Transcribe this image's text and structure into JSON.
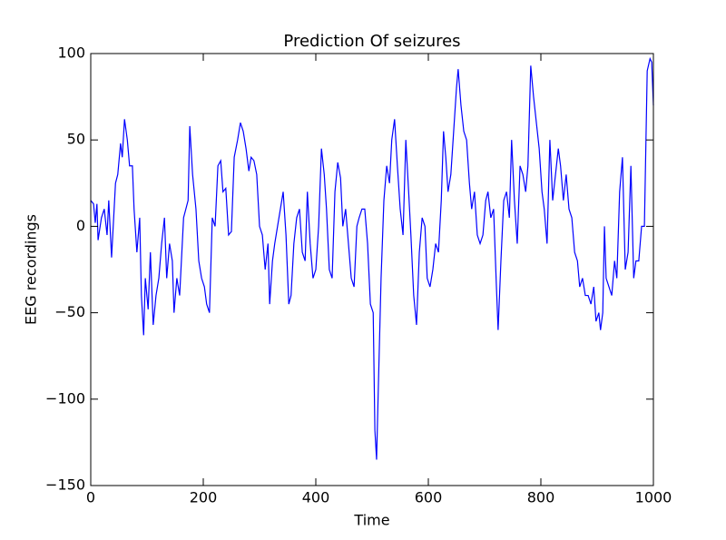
{
  "chart_data": {
    "type": "line",
    "title": "Prediction Of seizures",
    "x_label": "Time",
    "y_label": "EEG recordings",
    "x": [
      0,
      5,
      8,
      11,
      13,
      19,
      24,
      29,
      32,
      37,
      44,
      48,
      53,
      56,
      60,
      65,
      69,
      74,
      77,
      82,
      87,
      90,
      94,
      97,
      102,
      106,
      111,
      116,
      121,
      126,
      131,
      135,
      140,
      145,
      148,
      153,
      158,
      165,
      169,
      173,
      176,
      181,
      187,
      192,
      197,
      202,
      206,
      211,
      216,
      221,
      226,
      231,
      235,
      240,
      245,
      250,
      255,
      261,
      266,
      271,
      276,
      281,
      285,
      290,
      295,
      300,
      305,
      310,
      315,
      318,
      323,
      327,
      332,
      337,
      342,
      347,
      352,
      356,
      361,
      366,
      371,
      376,
      381,
      385,
      390,
      395,
      400,
      405,
      410,
      415,
      419,
      424,
      429,
      434,
      439,
      444,
      448,
      453,
      458,
      463,
      468,
      473,
      477,
      482,
      487,
      492,
      497,
      502,
      505,
      508,
      511,
      516,
      521,
      526,
      531,
      535,
      540,
      545,
      550,
      555,
      560,
      565,
      569,
      574,
      579,
      584,
      589,
      594,
      598,
      603,
      608,
      613,
      618,
      623,
      627,
      631,
      635,
      640,
      645,
      650,
      653,
      658,
      663,
      668,
      673,
      677,
      682,
      687,
      692,
      697,
      702,
      706,
      711,
      716,
      721,
      724,
      729,
      734,
      739,
      744,
      748,
      753,
      758,
      763,
      768,
      773,
      777,
      782,
      787,
      792,
      797,
      802,
      806,
      811,
      816,
      821,
      826,
      831,
      835,
      840,
      845,
      850,
      855,
      860,
      865,
      869,
      874,
      879,
      884,
      889,
      894,
      898,
      903,
      906,
      910,
      913,
      916,
      921,
      926,
      931,
      935,
      940,
      945,
      950,
      955,
      960,
      965,
      969,
      974,
      979,
      984,
      989,
      994,
      997,
      1000
    ],
    "series": [
      {
        "name": "EEG",
        "color": "#0000ff",
        "values": [
          15,
          13,
          2,
          13,
          -8,
          5,
          10,
          -5,
          15,
          -18,
          25,
          30,
          48,
          40,
          62,
          50,
          35,
          35,
          10,
          -15,
          5,
          -40,
          -63,
          -30,
          -48,
          -15,
          -57,
          -40,
          -30,
          -10,
          5,
          -30,
          -10,
          -20,
          -50,
          -30,
          -40,
          5,
          10,
          15,
          58,
          30,
          10,
          -20,
          -30,
          -35,
          -45,
          -50,
          5,
          0,
          35,
          38,
          20,
          22,
          -5,
          -3,
          40,
          50,
          60,
          55,
          45,
          32,
          40,
          38,
          30,
          0,
          -5,
          -25,
          -10,
          -45,
          -20,
          -10,
          0,
          10,
          20,
          -5,
          -45,
          -40,
          -10,
          5,
          10,
          -15,
          -20,
          20,
          -10,
          -30,
          -25,
          0,
          45,
          30,
          10,
          -25,
          -30,
          20,
          37,
          28,
          0,
          10,
          -10,
          -30,
          -35,
          0,
          5,
          10,
          10,
          -10,
          -45,
          -50,
          -118,
          -135,
          -95,
          -30,
          15,
          35,
          25,
          50,
          62,
          35,
          10,
          -5,
          50,
          20,
          -5,
          -40,
          -57,
          -15,
          5,
          0,
          -30,
          -35,
          -25,
          -10,
          -15,
          15,
          55,
          40,
          20,
          30,
          55,
          80,
          91,
          70,
          55,
          50,
          25,
          10,
          20,
          -5,
          -10,
          -5,
          15,
          20,
          5,
          10,
          -35,
          -60,
          -20,
          15,
          20,
          5,
          50,
          15,
          -10,
          35,
          30,
          20,
          35,
          93,
          75,
          60,
          45,
          20,
          10,
          -10,
          50,
          15,
          30,
          45,
          35,
          15,
          30,
          10,
          5,
          -15,
          -20,
          -35,
          -30,
          -40,
          -40,
          -45,
          -35,
          -55,
          -50,
          -60,
          -50,
          0,
          -30,
          -35,
          -40,
          -20,
          -30,
          20,
          40,
          -25,
          -15,
          35,
          -30,
          -20,
          -20,
          0,
          0,
          90,
          97,
          95,
          70
        ]
      }
    ],
    "xlim": [
      0,
      1000
    ],
    "xticks": [
      0,
      200,
      400,
      600,
      800,
      1000
    ],
    "ylim": [
      -150,
      100
    ],
    "yticks": [
      {
        "value": -150,
        "label": "−150"
      },
      {
        "value": -100,
        "label": "−100"
      },
      {
        "value": -50,
        "label": "−50"
      },
      0,
      50,
      100
    ]
  }
}
